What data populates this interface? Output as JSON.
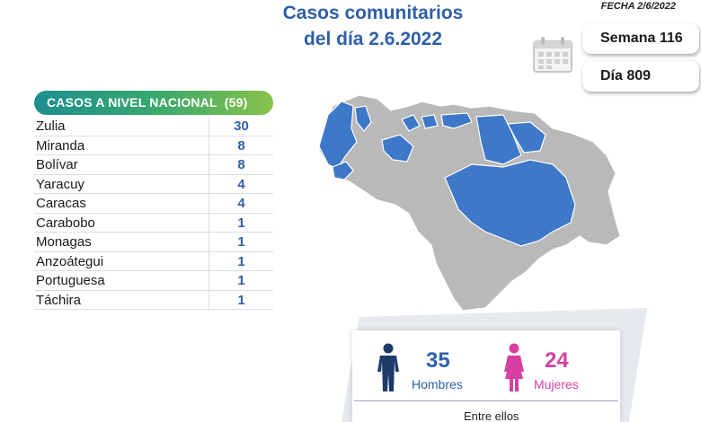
{
  "header": {
    "title_line1": "Casos comunitarios",
    "title_line2": "del día 2.6.2022",
    "fecha": "FECHA 2/6/2022",
    "semana": "Semana 116",
    "dia": "Día 809"
  },
  "icons": {
    "calendar": "calendar-icon",
    "man": "man-icon",
    "woman": "woman-icon"
  },
  "table": {
    "heading": "CASOS A NIVEL NACIONAL",
    "total": "(59)",
    "rows": [
      {
        "state": "Zulia",
        "cases": "30"
      },
      {
        "state": "Miranda",
        "cases": "8"
      },
      {
        "state": "Bolívar",
        "cases": "8"
      },
      {
        "state": "Yaracuy",
        "cases": "4"
      },
      {
        "state": "Caracas",
        "cases": "4"
      },
      {
        "state": "Carabobo",
        "cases": "1"
      },
      {
        "state": "Monagas",
        "cases": "1"
      },
      {
        "state": "Anzoátegui",
        "cases": "1"
      },
      {
        "state": "Portuguesa",
        "cases": "1"
      },
      {
        "state": "Táchira",
        "cases": "1"
      }
    ]
  },
  "gender": {
    "men_count": "35",
    "men_label": "Hombres",
    "women_count": "24",
    "women_label": "Mujeres",
    "footer_text": "Entre ellos"
  },
  "colors": {
    "title_blue": "#2f5fa8",
    "highlight_blue": "#3d78c9",
    "map_gray": "#b9b9b9",
    "women_pink": "#d63fa0",
    "men_navy": "#1d3a68"
  }
}
